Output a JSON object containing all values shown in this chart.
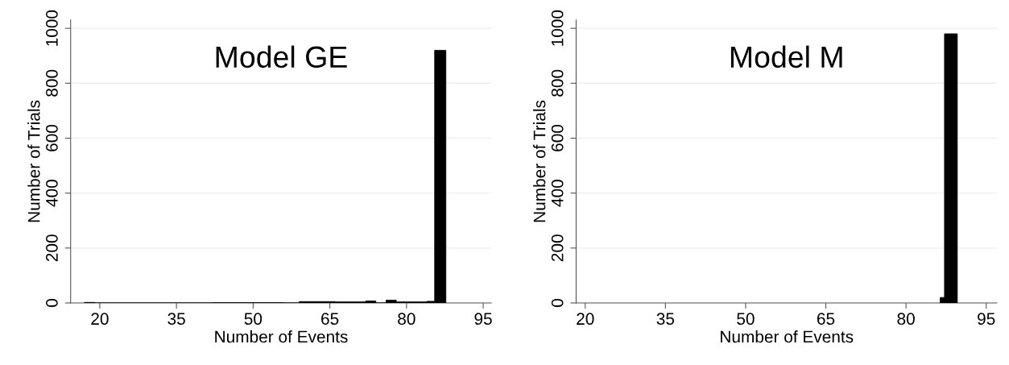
{
  "chart_data": [
    {
      "type": "histogram",
      "title": "Model GE",
      "xlabel": "Number of Events",
      "ylabel": "Number of Trials",
      "bins": [
        17,
        19,
        42,
        56,
        59,
        66,
        72,
        74,
        76,
        78,
        84,
        85.5,
        87.7
      ],
      "values": [
        2,
        0,
        1,
        0,
        5,
        4,
        7,
        0,
        10,
        4,
        6,
        920
      ],
      "color": "#000000",
      "xlim": [
        14.3,
        96.6
      ],
      "xticks": [
        20,
        35,
        50,
        65,
        80,
        95
      ],
      "ylim": [
        0,
        1030
      ],
      "yticks": [
        0,
        200,
        400,
        600,
        800,
        1000
      ],
      "grid": "y",
      "legend": false
    },
    {
      "type": "histogram",
      "title": "Model M",
      "xlabel": "Number of Events",
      "ylabel": "Number of Trials",
      "bins": [
        86.4,
        87.2,
        89.6
      ],
      "values": [
        20,
        980
      ],
      "color": "#000000",
      "xlim": [
        18.3,
        97
      ],
      "xticks": [
        20,
        35,
        50,
        65,
        80,
        95
      ],
      "ylim": [
        0,
        1030
      ],
      "yticks": [
        0,
        200,
        400,
        600,
        800,
        1000
      ],
      "grid": "y",
      "legend": false
    }
  ]
}
